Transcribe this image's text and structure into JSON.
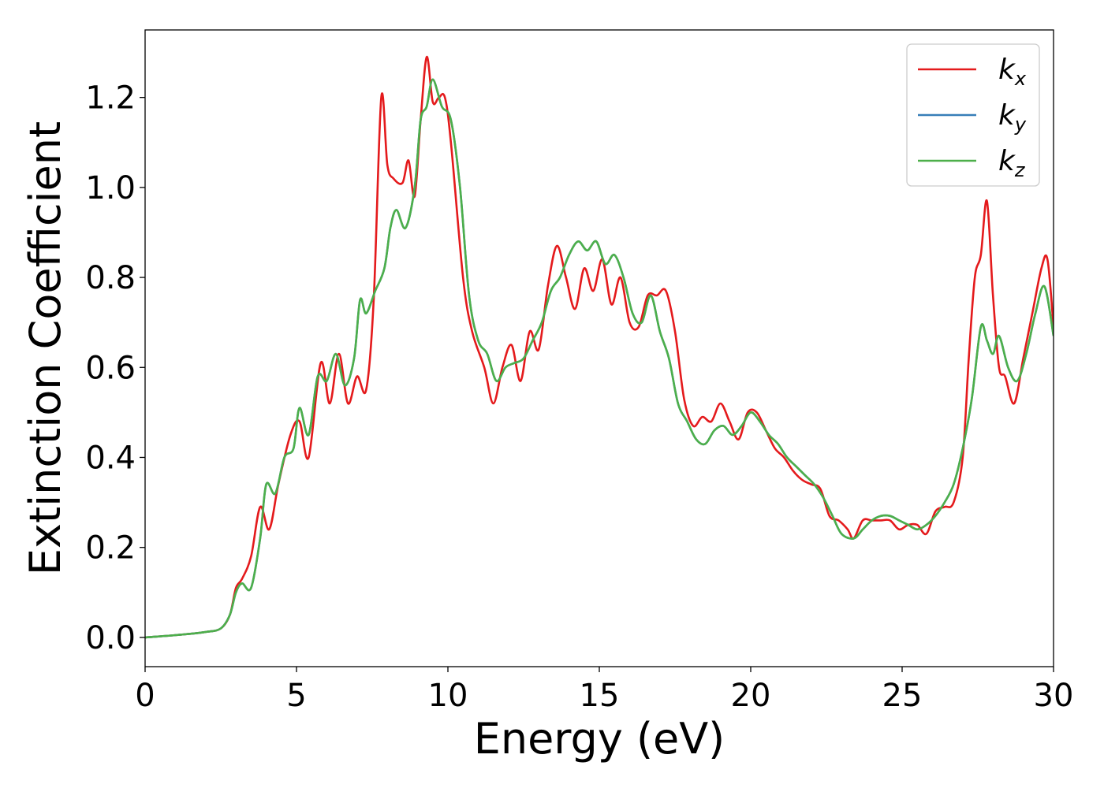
{
  "chart_data": {
    "type": "line",
    "title": "",
    "xlabel": "Energy (eV)",
    "ylabel": "Extinction Coefficient",
    "xlim": [
      0,
      30
    ],
    "ylim": [
      -0.065,
      1.35
    ],
    "xticks": [
      0,
      5,
      10,
      15,
      20,
      25,
      30
    ],
    "xtick_labels": [
      "0",
      "5",
      "10",
      "15",
      "20",
      "25",
      "30"
    ],
    "yticks": [
      0.0,
      0.2,
      0.4,
      0.6,
      0.8,
      1.0,
      1.2
    ],
    "ytick_labels": [
      "0.0",
      "0.2",
      "0.4",
      "0.6",
      "0.8",
      "1.0",
      "1.2"
    ],
    "grid": false,
    "legend_position": "top-right",
    "series": [
      {
        "name": "kx",
        "legend_base": "k",
        "legend_sub": "x",
        "color": "#e41a1c",
        "x": [
          0,
          1,
          2,
          2.5,
          2.8,
          3.0,
          3.2,
          3.5,
          3.8,
          4.1,
          4.4,
          4.8,
          5.1,
          5.4,
          5.8,
          6.1,
          6.4,
          6.7,
          7.0,
          7.3,
          7.55,
          7.8,
          8.0,
          8.2,
          8.5,
          8.7,
          8.9,
          9.1,
          9.3,
          9.5,
          9.7,
          9.9,
          10.1,
          10.5,
          10.8,
          11.2,
          11.5,
          11.8,
          12.1,
          12.4,
          12.7,
          13.0,
          13.3,
          13.6,
          13.9,
          14.2,
          14.5,
          14.8,
          15.1,
          15.4,
          15.7,
          16.0,
          16.3,
          16.6,
          16.9,
          17.2,
          17.5,
          17.8,
          18.1,
          18.4,
          18.7,
          19.0,
          19.3,
          19.6,
          19.9,
          20.2,
          20.5,
          20.8,
          21.1,
          21.4,
          21.7,
          22.0,
          22.3,
          22.6,
          22.9,
          23.2,
          23.4,
          23.7,
          24.0,
          24.3,
          24.6,
          24.9,
          25.2,
          25.5,
          25.8,
          26.1,
          26.4,
          26.7,
          27.0,
          27.2,
          27.4,
          27.6,
          27.8,
          28.0,
          28.2,
          28.4,
          28.7,
          29.0,
          29.3,
          29.6,
          29.8,
          30.0
        ],
        "y": [
          0.0,
          0.005,
          0.012,
          0.02,
          0.05,
          0.11,
          0.13,
          0.18,
          0.29,
          0.24,
          0.34,
          0.45,
          0.48,
          0.4,
          0.61,
          0.52,
          0.63,
          0.52,
          0.58,
          0.55,
          0.75,
          1.2,
          1.05,
          1.02,
          1.01,
          1.06,
          0.98,
          1.15,
          1.29,
          1.19,
          1.2,
          1.2,
          1.1,
          0.8,
          0.68,
          0.6,
          0.52,
          0.6,
          0.65,
          0.57,
          0.68,
          0.64,
          0.78,
          0.87,
          0.8,
          0.73,
          0.82,
          0.77,
          0.84,
          0.74,
          0.8,
          0.7,
          0.69,
          0.76,
          0.76,
          0.77,
          0.68,
          0.53,
          0.47,
          0.49,
          0.48,
          0.52,
          0.48,
          0.44,
          0.5,
          0.5,
          0.46,
          0.42,
          0.4,
          0.37,
          0.35,
          0.34,
          0.33,
          0.27,
          0.26,
          0.24,
          0.22,
          0.26,
          0.26,
          0.26,
          0.26,
          0.24,
          0.25,
          0.25,
          0.23,
          0.28,
          0.29,
          0.3,
          0.4,
          0.62,
          0.8,
          0.85,
          0.97,
          0.76,
          0.6,
          0.58,
          0.52,
          0.62,
          0.72,
          0.82,
          0.84,
          0.69
        ]
      },
      {
        "name": "ky",
        "legend_base": "k",
        "legend_sub": "y",
        "color": "#377eb8",
        "x": [
          0,
          1,
          2,
          2.5,
          2.8,
          3.0,
          3.2,
          3.5,
          3.8,
          4.0,
          4.3,
          4.6,
          4.9,
          5.1,
          5.4,
          5.7,
          6.0,
          6.3,
          6.6,
          6.9,
          7.1,
          7.3,
          7.6,
          7.9,
          8.1,
          8.3,
          8.6,
          8.9,
          9.1,
          9.3,
          9.5,
          9.8,
          10.1,
          10.4,
          10.7,
          11.0,
          11.3,
          11.6,
          11.9,
          12.2,
          12.5,
          12.8,
          13.1,
          13.4,
          13.7,
          14.0,
          14.3,
          14.6,
          14.9,
          15.2,
          15.5,
          15.8,
          16.1,
          16.4,
          16.7,
          17.0,
          17.3,
          17.6,
          17.9,
          18.2,
          18.5,
          18.8,
          19.1,
          19.4,
          19.7,
          20.0,
          20.3,
          20.6,
          20.9,
          21.2,
          21.5,
          21.8,
          22.1,
          22.4,
          22.7,
          23.0,
          23.4,
          23.7,
          24.0,
          24.3,
          24.6,
          24.9,
          25.2,
          25.5,
          25.8,
          26.1,
          26.4,
          26.7,
          27.0,
          27.3,
          27.6,
          27.8,
          28.0,
          28.2,
          28.5,
          28.8,
          29.1,
          29.4,
          29.7,
          30.0
        ],
        "y": [
          0.0,
          0.005,
          0.012,
          0.02,
          0.05,
          0.1,
          0.12,
          0.11,
          0.22,
          0.34,
          0.32,
          0.4,
          0.42,
          0.51,
          0.45,
          0.58,
          0.57,
          0.63,
          0.56,
          0.62,
          0.75,
          0.72,
          0.77,
          0.82,
          0.91,
          0.95,
          0.91,
          1.0,
          1.15,
          1.18,
          1.24,
          1.18,
          1.15,
          1.0,
          0.76,
          0.66,
          0.63,
          0.57,
          0.6,
          0.61,
          0.62,
          0.66,
          0.7,
          0.77,
          0.8,
          0.85,
          0.88,
          0.86,
          0.88,
          0.83,
          0.85,
          0.8,
          0.72,
          0.7,
          0.76,
          0.68,
          0.62,
          0.52,
          0.48,
          0.44,
          0.43,
          0.46,
          0.47,
          0.45,
          0.47,
          0.5,
          0.48,
          0.45,
          0.43,
          0.4,
          0.38,
          0.36,
          0.34,
          0.31,
          0.27,
          0.23,
          0.22,
          0.24,
          0.26,
          0.27,
          0.27,
          0.26,
          0.25,
          0.24,
          0.25,
          0.27,
          0.3,
          0.34,
          0.42,
          0.53,
          0.69,
          0.66,
          0.63,
          0.67,
          0.6,
          0.57,
          0.63,
          0.72,
          0.78,
          0.67
        ]
      },
      {
        "name": "kz",
        "legend_base": "k",
        "legend_sub": "z",
        "color": "#4daf4a",
        "x": [
          0,
          1,
          2,
          2.5,
          2.8,
          3.0,
          3.2,
          3.5,
          3.8,
          4.0,
          4.3,
          4.6,
          4.9,
          5.1,
          5.4,
          5.7,
          6.0,
          6.3,
          6.6,
          6.9,
          7.1,
          7.3,
          7.6,
          7.9,
          8.1,
          8.3,
          8.6,
          8.9,
          9.1,
          9.3,
          9.5,
          9.8,
          10.1,
          10.4,
          10.7,
          11.0,
          11.3,
          11.6,
          11.9,
          12.2,
          12.5,
          12.8,
          13.1,
          13.4,
          13.7,
          14.0,
          14.3,
          14.6,
          14.9,
          15.2,
          15.5,
          15.8,
          16.1,
          16.4,
          16.7,
          17.0,
          17.3,
          17.6,
          17.9,
          18.2,
          18.5,
          18.8,
          19.1,
          19.4,
          19.7,
          20.0,
          20.3,
          20.6,
          20.9,
          21.2,
          21.5,
          21.8,
          22.1,
          22.4,
          22.7,
          23.0,
          23.4,
          23.7,
          24.0,
          24.3,
          24.6,
          24.9,
          25.2,
          25.5,
          25.8,
          26.1,
          26.4,
          26.7,
          27.0,
          27.3,
          27.6,
          27.8,
          28.0,
          28.2,
          28.5,
          28.8,
          29.1,
          29.4,
          29.7,
          30.0
        ],
        "y": [
          0.0,
          0.005,
          0.012,
          0.02,
          0.05,
          0.1,
          0.12,
          0.11,
          0.22,
          0.34,
          0.32,
          0.4,
          0.42,
          0.51,
          0.45,
          0.58,
          0.57,
          0.63,
          0.56,
          0.62,
          0.75,
          0.72,
          0.77,
          0.82,
          0.91,
          0.95,
          0.91,
          1.0,
          1.15,
          1.18,
          1.24,
          1.18,
          1.15,
          1.0,
          0.76,
          0.66,
          0.63,
          0.57,
          0.6,
          0.61,
          0.62,
          0.66,
          0.7,
          0.77,
          0.8,
          0.85,
          0.88,
          0.86,
          0.88,
          0.83,
          0.85,
          0.8,
          0.72,
          0.7,
          0.76,
          0.68,
          0.62,
          0.52,
          0.48,
          0.44,
          0.43,
          0.46,
          0.47,
          0.45,
          0.47,
          0.5,
          0.48,
          0.45,
          0.43,
          0.4,
          0.38,
          0.36,
          0.34,
          0.31,
          0.27,
          0.23,
          0.22,
          0.24,
          0.26,
          0.27,
          0.27,
          0.26,
          0.25,
          0.24,
          0.25,
          0.27,
          0.3,
          0.34,
          0.42,
          0.53,
          0.69,
          0.66,
          0.63,
          0.67,
          0.6,
          0.57,
          0.63,
          0.72,
          0.78,
          0.67
        ]
      }
    ]
  }
}
